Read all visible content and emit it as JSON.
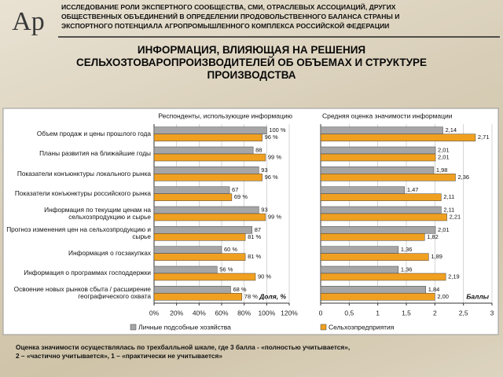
{
  "logo": "Ар",
  "header": {
    "lines": [
      "ИССЛЕДОВАНИЕ РОЛИ ЭКСПЕРТНОГО СООБЩЕСТВА, СМИ, ОТРАСЛЕВЫХ АССОЦИАЦИЙ, ДРУГИХ",
      "ОБЩЕСТВЕННЫХ ОБЪЕДИНЕНИЙ В ОПРЕДЕЛЕНИИ ПРОДОВОЛЬСТВЕННОГО БАЛАНСА СТРАНЫ И",
      "ЭКСПОРТНОГО ПОТЕНЦИАЛА АГРОПРОМЫШЛЕННОГО КОМПЛЕКСА РОССИЙСКОЙ ФЕДЕРАЦИИ"
    ]
  },
  "title_lines": [
    "ИНФОРМАЦИЯ, ВЛИЯЮЩАЯ НА РЕШЕНИЯ",
    "СЕЛЬХОЗТОВАРОПРОИЗВОДИТЕЛЕЙ ОБ ОБЪЕМАХ И СТРУКТУРЕ",
    "ПРОИЗВОДСТВА"
  ],
  "chart_data": [
    {
      "type": "bar",
      "orientation": "horizontal",
      "title": "Респонденты, использующие информацию",
      "x_label": "Доля, %",
      "categories": [
        "Объем продаж и цены прошлого года",
        "Планы развития на ближайшие годы",
        "Показатели конъюнктуры локального рынка",
        "Показатели конъюнктуры российского рынка",
        "Информация по текущим ценам на сельхозпродукцию и сырье",
        "Прогноз изменения цен на сельхозпродукцию и сырье",
        "Информация о госзакупках",
        "Информация о программах господдержки",
        "Освоение новых рынков сбыта / расширение географического охвата"
      ],
      "series": [
        {
          "name": "Личные подсобные хозяйства",
          "color": "#a6a6a6",
          "values": [
            100,
            88,
            93,
            67,
            93,
            87,
            60,
            56,
            68
          ],
          "value_labels": [
            "100 %",
            "88",
            "93",
            "67",
            "93",
            "87",
            "60 %",
            "56 %",
            "68 %"
          ]
        },
        {
          "name": "Сельхозпредприятия",
          "color": "#f0a020",
          "values": [
            96,
            99,
            96,
            69,
            99,
            81,
            81,
            90,
            78
          ],
          "value_labels": [
            "96 %",
            "99 %",
            "96 %",
            "69 %",
            "99 %",
            "81 %",
            "81 %",
            "90 %",
            "78 %"
          ]
        }
      ],
      "xlim": [
        0,
        120
      ],
      "xticks": [
        {
          "value": 0,
          "label": "0%"
        },
        {
          "value": 20,
          "label": "20%"
        },
        {
          "value": 40,
          "label": "40%"
        },
        {
          "value": 60,
          "label": "60%"
        },
        {
          "value": 80,
          "label": "80%"
        },
        {
          "value": 100,
          "label": "100%"
        },
        {
          "value": 120,
          "label": "120%"
        }
      ]
    },
    {
      "type": "bar",
      "orientation": "horizontal",
      "title": "Средняя оценка значимости информации",
      "x_label": "Баллы",
      "series": [
        {
          "name": "Личные подсобные хозяйства",
          "color": "#a6a6a6",
          "values": [
            2.14,
            2.01,
            1.98,
            1.47,
            2.11,
            2.01,
            1.36,
            1.36,
            1.84
          ],
          "value_labels": [
            "2,14",
            "2,01",
            "1,98",
            "1,47",
            "2,11",
            "2,01",
            "1,36",
            "1,36",
            "1,84"
          ]
        },
        {
          "name": "Сельхозпредприятия",
          "color": "#f0a020",
          "values": [
            2.71,
            2.01,
            2.36,
            2.11,
            2.21,
            1.82,
            1.89,
            2.19,
            2.0
          ],
          "value_labels": [
            "2,71",
            "2,01",
            "2,36",
            "2,11",
            "2,21",
            "1,82",
            "1,89",
            "2,19",
            "2,00"
          ]
        }
      ],
      "xlim": [
        0,
        3
      ],
      "xticks": [
        0,
        {
          "value": 0.5,
          "label": "0,5"
        },
        1,
        {
          "value": 1.5,
          "label": "1,5"
        },
        2,
        {
          "value": 2.5,
          "label": "2,5"
        },
        3
      ]
    }
  ],
  "footnote": [
    "Оценка значимости осуществлялась по трехбалльной шкале, где 3 балла - «полностью учитывается»,",
    "2 – «частично учитывается», 1 – «практически не учитывается»"
  ]
}
